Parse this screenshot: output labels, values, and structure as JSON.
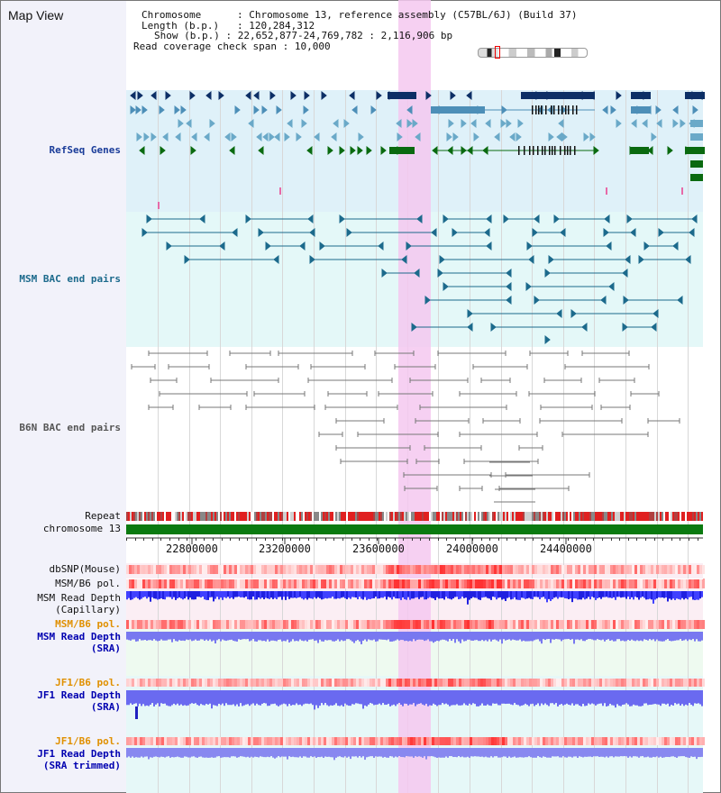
{
  "header": {
    "title": "Map View",
    "chromosome_label": "Chromosome",
    "chromosome_value": "Chromosome 13, reference assembly (C57BL/6J) (Build 37)",
    "length_label": "Length (b.p.)",
    "length_value": "120,284,312",
    "show_label": "Show (b.p.)",
    "show_value": "22,652,877-24,769,782 : 2,116,906 bp",
    "coverage_label": "Read coverage check span",
    "coverage_value": "10,000"
  },
  "tracks": {
    "refseq": "RefSeq Genes",
    "msm_bac": "MSM BAC end pairs",
    "b6n_bac": "B6N BAC end pairs",
    "repeat": "Repeat",
    "chromosome": "chromosome 13",
    "dbsnp": "dbSNP(Mouse)",
    "msm_b6_pol_1": "MSM/B6 pol.",
    "msm_read_depth_cap_1": "MSM Read Depth",
    "msm_read_depth_cap_2": "(Capillary)",
    "msm_b6_pol_2": "MSM/B6 pol.",
    "msm_read_depth_sra_1": "MSM Read Depth",
    "msm_read_depth_sra_2": "(SRA)",
    "jf1_b6_pol_1": "JF1/B6 pol.",
    "jf1_read_depth_1": "JF1 Read Depth",
    "jf1_read_depth_2": "(SRA)",
    "jf1_b6_pol_2": "JF1/B6 pol.",
    "jf1_read_depth_trim_1": "JF1 Read Depth",
    "jf1_read_depth_trim_2": "(SRA trimmed)"
  },
  "axis": {
    "ticks": [
      "22800000",
      "23200000",
      "23600000",
      "24000000",
      "24400000"
    ]
  },
  "colors": {
    "gene_dark": "#0d2f66",
    "gene_mid": "#4d8fb8",
    "gene_light": "#6aa9c8",
    "gene_green": "#0a6a10",
    "msm_bac": "#1c6a8c",
    "b6n_bac": "#666666",
    "highlight": "#f4c8f0",
    "chromosome": "#0a7a10",
    "depth_blue": "#2020e0",
    "pol_red": "#ee2222"
  }
}
